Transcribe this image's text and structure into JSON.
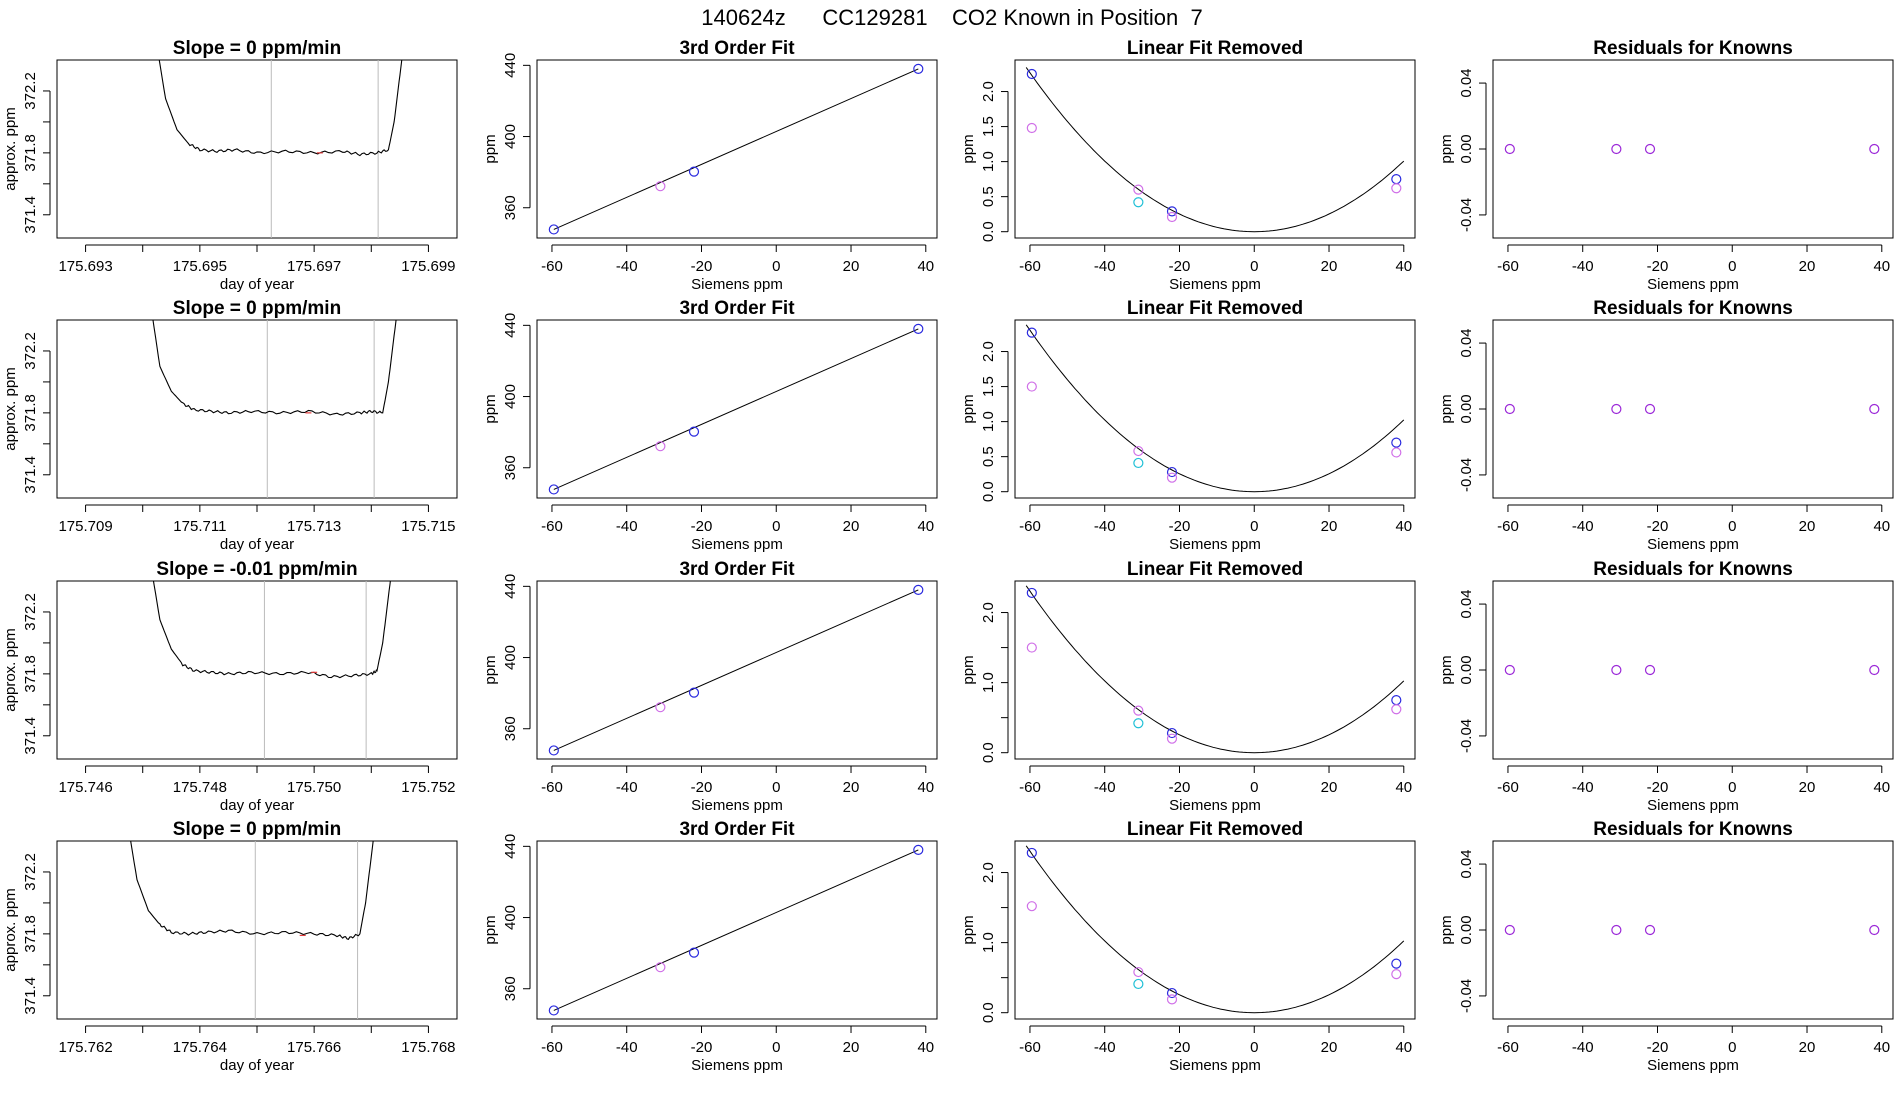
{
  "figure_title": "140624z      CC129281    CO2 Known in Position  7",
  "colors": {
    "axis": "#000000",
    "trace": "#000000",
    "marker_line": "#bbbbbb",
    "blue": "#2a2adf",
    "magenta": "#d070e8",
    "cyan": "#1fbfd6",
    "purple": "#9b28d8",
    "red": "#e23c3c"
  },
  "column_titles": {
    "fit": "3rd Order Fit",
    "linear_removed": "Linear Fit Removed",
    "residuals": "Residuals for Knowns"
  },
  "axis_labels": {
    "timeseries_x": "day of year",
    "timeseries_y": "approx. ppm",
    "siemens_x": "Siemens ppm",
    "ppm_y": "ppm"
  },
  "chart_data": [
    {
      "type": "line",
      "row": 1,
      "panel": "timeseries",
      "title": "Slope =  0  ppm/min",
      "xlabel": "day of year",
      "ylabel": "approx. ppm",
      "xlim": [
        175.6925,
        175.6995
      ],
      "ylim": [
        371.25,
        372.4
      ],
      "xticks": [
        "175.693",
        "175.695",
        "175.697",
        "175.699"
      ],
      "xticks_minor": [
        175.694,
        175.696,
        175.698
      ],
      "yticks": [
        "371.4",
        "371.8",
        "372.2"
      ],
      "yticks_minor": [
        371.6,
        372.0
      ],
      "window": [
        175.69625,
        175.69812
      ],
      "red_mark": [
        175.6971,
        371.8
      ],
      "x": [
        175.6942,
        175.6944,
        175.6946,
        175.6948,
        175.695,
        175.6953,
        175.6956,
        175.696,
        175.6965,
        175.697,
        175.6975,
        175.6978,
        175.6981,
        175.6983,
        175.6984,
        175.6985,
        175.6986
      ],
      "y": [
        372.6,
        372.15,
        371.95,
        371.86,
        371.82,
        371.81,
        371.82,
        371.8,
        371.81,
        371.8,
        371.81,
        371.79,
        371.8,
        371.82,
        372.0,
        372.3,
        372.6
      ]
    },
    {
      "type": "scatter",
      "row": 1,
      "panel": "fit",
      "title": "3rd Order Fit",
      "xlabel": "Siemens ppm",
      "ylabel": "ppm",
      "xlim": [
        -64,
        43
      ],
      "ylim": [
        343,
        443
      ],
      "xticks": [
        "-60",
        "-40",
        "-20",
        "0",
        "20",
        "40"
      ],
      "yticks": [
        "360",
        "400",
        "440"
      ],
      "points": [
        {
          "x": -59.5,
          "y": 347.8,
          "color": "blue"
        },
        {
          "x": -31.0,
          "y": 372.1,
          "color": "magenta"
        },
        {
          "x": -22.0,
          "y": 380.3,
          "color": "blue"
        },
        {
          "x": 38.0,
          "y": 438.0,
          "color": "blue"
        }
      ]
    },
    {
      "type": "scatter",
      "row": 1,
      "panel": "linear_removed",
      "title": "Linear Fit Removed",
      "xlabel": "Siemens ppm",
      "ylabel": "ppm",
      "xlim": [
        -64,
        43
      ],
      "ylim": [
        -0.09,
        2.45
      ],
      "xticks": [
        "-60",
        "-40",
        "-20",
        "0",
        "20",
        "40"
      ],
      "yticks": [
        "0.0",
        "0.5",
        "1.0",
        "1.5",
        "2.0"
      ],
      "curve_a": 0.00063,
      "points": [
        {
          "x": -59.5,
          "y": 2.25,
          "color": "blue"
        },
        {
          "x": -59.5,
          "y": 1.48,
          "color": "magenta"
        },
        {
          "x": -31.0,
          "y": 0.6,
          "color": "magenta"
        },
        {
          "x": -31.0,
          "y": 0.42,
          "color": "cyan"
        },
        {
          "x": -22.0,
          "y": 0.29,
          "color": "blue"
        },
        {
          "x": -22.0,
          "y": 0.21,
          "color": "magenta"
        },
        {
          "x": 38.0,
          "y": 0.75,
          "color": "blue"
        },
        {
          "x": 38.0,
          "y": 0.62,
          "color": "magenta"
        }
      ]
    },
    {
      "type": "scatter",
      "row": 1,
      "panel": "residuals",
      "title": "Residuals for Knowns",
      "xlabel": "Siemens ppm",
      "ylabel": "ppm",
      "xlim": [
        -64,
        43
      ],
      "ylim": [
        -0.054,
        0.054
      ],
      "xticks": [
        "-60",
        "-40",
        "-20",
        "0",
        "20",
        "40"
      ],
      "yticks": [
        "-0.04",
        "0.00",
        "0.04"
      ],
      "points": [
        {
          "x": -59.5,
          "y": 0.0,
          "color": "purple"
        },
        {
          "x": -31.0,
          "y": 0.0,
          "color": "purple"
        },
        {
          "x": -22.0,
          "y": 0.0,
          "color": "purple"
        },
        {
          "x": 38.0,
          "y": 0.0,
          "color": "purple"
        }
      ]
    },
    {
      "type": "line",
      "row": 2,
      "panel": "timeseries",
      "title": "Slope =  0  ppm/min",
      "xlabel": "day of year",
      "ylabel": "approx. ppm",
      "xlim": [
        175.7085,
        175.7155
      ],
      "ylim": [
        371.25,
        372.4
      ],
      "xticks": [
        "175.709",
        "175.711",
        "175.713",
        "175.715"
      ],
      "xticks_minor": [
        175.71,
        175.712,
        175.714
      ],
      "yticks": [
        "371.4",
        "371.8",
        "372.2"
      ],
      "yticks_minor": [
        371.6,
        372.0
      ],
      "window": [
        175.71218,
        175.71405
      ],
      "red_mark": [
        175.7129,
        371.8
      ],
      "x": [
        175.7101,
        175.7103,
        175.7105,
        175.7107,
        175.7109,
        175.7112,
        175.7115,
        175.7119,
        175.7124,
        175.7129,
        175.7134,
        175.7138,
        175.714,
        175.7142,
        175.7143,
        175.7144,
        175.7145
      ],
      "y": [
        372.6,
        372.1,
        371.94,
        371.86,
        371.82,
        371.81,
        371.8,
        371.81,
        371.8,
        371.81,
        371.79,
        371.8,
        371.81,
        371.8,
        372.0,
        372.3,
        372.6
      ]
    },
    {
      "type": "scatter",
      "row": 2,
      "panel": "fit",
      "title": "3rd Order Fit",
      "xlabel": "Siemens ppm",
      "ylabel": "ppm",
      "xlim": [
        -64,
        43
      ],
      "ylim": [
        343,
        443
      ],
      "xticks": [
        "-60",
        "-40",
        "-20",
        "0",
        "20",
        "40"
      ],
      "yticks": [
        "360",
        "400",
        "440"
      ],
      "points": [
        {
          "x": -59.5,
          "y": 347.8,
          "color": "blue"
        },
        {
          "x": -31.0,
          "y": 372.1,
          "color": "magenta"
        },
        {
          "x": -22.0,
          "y": 380.3,
          "color": "blue"
        },
        {
          "x": 38.0,
          "y": 438.0,
          "color": "blue"
        }
      ]
    },
    {
      "type": "scatter",
      "row": 2,
      "panel": "linear_removed",
      "title": "Linear Fit Removed",
      "xlabel": "Siemens ppm",
      "ylabel": "ppm",
      "xlim": [
        -64,
        43
      ],
      "ylim": [
        -0.09,
        2.45
      ],
      "xticks": [
        "-60",
        "-40",
        "-20",
        "0",
        "20",
        "40"
      ],
      "yticks": [
        "0.0",
        "0.5",
        "1.0",
        "1.5",
        "2.0"
      ],
      "curve_a": 0.00064,
      "points": [
        {
          "x": -59.5,
          "y": 2.27,
          "color": "blue"
        },
        {
          "x": -59.5,
          "y": 1.5,
          "color": "magenta"
        },
        {
          "x": -31.0,
          "y": 0.58,
          "color": "magenta"
        },
        {
          "x": -31.0,
          "y": 0.41,
          "color": "cyan"
        },
        {
          "x": -22.0,
          "y": 0.28,
          "color": "blue"
        },
        {
          "x": -22.0,
          "y": 0.2,
          "color": "magenta"
        },
        {
          "x": 38.0,
          "y": 0.7,
          "color": "blue"
        },
        {
          "x": 38.0,
          "y": 0.56,
          "color": "magenta"
        }
      ]
    },
    {
      "type": "scatter",
      "row": 2,
      "panel": "residuals",
      "title": "Residuals for Knowns",
      "xlabel": "Siemens ppm",
      "ylabel": "ppm",
      "xlim": [
        -64,
        43
      ],
      "ylim": [
        -0.054,
        0.054
      ],
      "xticks": [
        "-60",
        "-40",
        "-20",
        "0",
        "20",
        "40"
      ],
      "yticks": [
        "-0.04",
        "0.00",
        "0.04"
      ],
      "points": [
        {
          "x": -59.5,
          "y": 0.0,
          "color": "purple"
        },
        {
          "x": -31.0,
          "y": 0.0,
          "color": "purple"
        },
        {
          "x": -22.0,
          "y": 0.0,
          "color": "purple"
        },
        {
          "x": 38.0,
          "y": 0.0,
          "color": "purple"
        }
      ]
    },
    {
      "type": "line",
      "row": 3,
      "panel": "timeseries",
      "title": "Slope =  -0.01  ppm/min",
      "xlabel": "day of year",
      "ylabel": "approx. ppm",
      "xlim": [
        175.7455,
        175.7525
      ],
      "ylim": [
        371.25,
        372.4
      ],
      "xticks": [
        "175.746",
        "175.748",
        "175.750",
        "175.752"
      ],
      "xticks_minor": [
        175.747,
        175.749,
        175.751
      ],
      "yticks": [
        "371.4",
        "371.8",
        "372.2"
      ],
      "yticks_minor": [
        371.6,
        372.0
      ],
      "window": [
        175.74913,
        175.75091
      ],
      "red_mark": [
        175.75,
        371.81
      ],
      "x": [
        175.7471,
        175.7473,
        175.7475,
        175.7477,
        175.7479,
        175.7482,
        175.7485,
        175.7489,
        175.7494,
        175.7499,
        175.7503,
        175.7507,
        175.751,
        175.7511,
        175.7512,
        175.7513,
        175.7514
      ],
      "y": [
        372.6,
        372.15,
        371.96,
        371.86,
        371.82,
        371.81,
        371.8,
        371.81,
        371.8,
        371.81,
        371.78,
        371.79,
        371.8,
        371.82,
        372.0,
        372.3,
        372.6
      ]
    },
    {
      "type": "scatter",
      "row": 3,
      "panel": "fit",
      "title": "3rd Order Fit",
      "xlabel": "Siemens ppm",
      "ylabel": "ppm",
      "xlim": [
        -64,
        43
      ],
      "ylim": [
        343,
        443
      ],
      "xticks": [
        "-60",
        "-40",
        "-20",
        "0",
        "20",
        "40"
      ],
      "yticks": [
        "360",
        "400",
        "440"
      ],
      "points": [
        {
          "x": -59.5,
          "y": 347.8,
          "color": "blue"
        },
        {
          "x": -31.0,
          "y": 372.1,
          "color": "magenta"
        },
        {
          "x": -22.0,
          "y": 380.3,
          "color": "blue"
        },
        {
          "x": 38.0,
          "y": 438.0,
          "color": "blue"
        }
      ]
    },
    {
      "type": "scatter",
      "row": 3,
      "panel": "linear_removed",
      "title": "Linear Fit Removed",
      "xlabel": "Siemens ppm",
      "ylabel": "ppm",
      "xlim": [
        -64,
        43
      ],
      "ylim": [
        -0.09,
        2.45
      ],
      "xticks": [
        "-60",
        "-40",
        "-20",
        "0",
        "20",
        "40"
      ],
      "yticks": [
        "0.0",
        "1.0",
        "2.0"
      ],
      "yticks_minor": [
        0.5,
        1.5
      ],
      "curve_a": 0.00064,
      "points": [
        {
          "x": -59.5,
          "y": 2.28,
          "color": "blue"
        },
        {
          "x": -59.5,
          "y": 1.5,
          "color": "magenta"
        },
        {
          "x": -31.0,
          "y": 0.6,
          "color": "magenta"
        },
        {
          "x": -31.0,
          "y": 0.42,
          "color": "cyan"
        },
        {
          "x": -22.0,
          "y": 0.28,
          "color": "blue"
        },
        {
          "x": -22.0,
          "y": 0.2,
          "color": "magenta"
        },
        {
          "x": 38.0,
          "y": 0.75,
          "color": "blue"
        },
        {
          "x": 38.0,
          "y": 0.62,
          "color": "magenta"
        }
      ]
    },
    {
      "type": "scatter",
      "row": 3,
      "panel": "residuals",
      "title": "Residuals for Knowns",
      "xlabel": "Siemens ppm",
      "ylabel": "ppm",
      "xlim": [
        -64,
        43
      ],
      "ylim": [
        -0.054,
        0.054
      ],
      "xticks": [
        "-60",
        "-40",
        "-20",
        "0",
        "20",
        "40"
      ],
      "yticks": [
        "-0.04",
        "0.00",
        "0.04"
      ],
      "points": [
        {
          "x": -59.5,
          "y": 0.0,
          "color": "purple"
        },
        {
          "x": -31.0,
          "y": 0.0,
          "color": "purple"
        },
        {
          "x": -22.0,
          "y": 0.0,
          "color": "purple"
        },
        {
          "x": 38.0,
          "y": 0.0,
          "color": "purple"
        }
      ]
    },
    {
      "type": "line",
      "row": 4,
      "panel": "timeseries",
      "title": "Slope =  0  ppm/min",
      "xlabel": "day of year",
      "ylabel": "approx. ppm",
      "xlim": [
        175.7615,
        175.7685
      ],
      "ylim": [
        371.25,
        372.4
      ],
      "xticks": [
        "175.762",
        "175.764",
        "175.766",
        "175.768"
      ],
      "xticks_minor": [
        175.763,
        175.765,
        175.767
      ],
      "yticks": [
        "371.4",
        "371.8",
        "372.2"
      ],
      "yticks_minor": [
        371.6,
        372.0
      ],
      "window": [
        175.76497,
        175.76676
      ],
      "red_mark": [
        175.7658,
        371.79
      ],
      "x": [
        175.7627,
        175.7629,
        175.7631,
        175.7633,
        175.7635,
        175.7638,
        175.7641,
        175.7645,
        175.765,
        175.7655,
        175.766,
        175.7664,
        175.7666,
        175.7668,
        175.7669,
        175.767,
        175.7671
      ],
      "y": [
        372.6,
        372.15,
        371.95,
        371.86,
        371.81,
        371.8,
        371.81,
        371.82,
        371.8,
        371.81,
        371.8,
        371.79,
        371.77,
        371.8,
        372.0,
        372.3,
        372.6
      ]
    },
    {
      "type": "scatter",
      "row": 4,
      "panel": "fit",
      "title": "3rd Order Fit",
      "xlabel": "Siemens ppm",
      "ylabel": "ppm",
      "xlim": [
        -64,
        43
      ],
      "ylim": [
        343,
        443
      ],
      "xticks": [
        "-60",
        "-40",
        "-20",
        "0",
        "20",
        "40"
      ],
      "yticks": [
        "360",
        "400",
        "440"
      ],
      "points": [
        {
          "x": -59.5,
          "y": 347.8,
          "color": "blue"
        },
        {
          "x": -31.0,
          "y": 372.1,
          "color": "magenta"
        },
        {
          "x": -22.0,
          "y": 380.3,
          "color": "blue"
        },
        {
          "x": 38.0,
          "y": 438.0,
          "color": "blue"
        }
      ]
    },
    {
      "type": "scatter",
      "row": 4,
      "panel": "linear_removed",
      "title": "Linear Fit Removed",
      "xlabel": "Siemens ppm",
      "ylabel": "ppm",
      "xlim": [
        -64,
        43
      ],
      "ylim": [
        -0.09,
        2.45
      ],
      "xticks": [
        "-60",
        "-40",
        "-20",
        "0",
        "20",
        "40"
      ],
      "yticks": [
        "0.0",
        "1.0",
        "2.0"
      ],
      "yticks_minor": [
        0.5,
        1.5
      ],
      "curve_a": 0.00064,
      "points": [
        {
          "x": -59.5,
          "y": 2.28,
          "color": "blue"
        },
        {
          "x": -59.5,
          "y": 1.52,
          "color": "magenta"
        },
        {
          "x": -31.0,
          "y": 0.58,
          "color": "magenta"
        },
        {
          "x": -31.0,
          "y": 0.41,
          "color": "cyan"
        },
        {
          "x": -22.0,
          "y": 0.28,
          "color": "blue"
        },
        {
          "x": -22.0,
          "y": 0.19,
          "color": "magenta"
        },
        {
          "x": 38.0,
          "y": 0.7,
          "color": "blue"
        },
        {
          "x": 38.0,
          "y": 0.55,
          "color": "magenta"
        }
      ]
    },
    {
      "type": "scatter",
      "row": 4,
      "panel": "residuals",
      "title": "Residuals for Knowns",
      "xlabel": "Siemens ppm",
      "ylabel": "ppm",
      "xlim": [
        -64,
        43
      ],
      "ylim": [
        -0.054,
        0.054
      ],
      "xticks": [
        "-60",
        "-40",
        "-20",
        "0",
        "20",
        "40"
      ],
      "yticks": [
        "-0.04",
        "0.00",
        "0.04"
      ],
      "points": [
        {
          "x": -59.5,
          "y": 0.0,
          "color": "purple"
        },
        {
          "x": -31.0,
          "y": 0.0,
          "color": "purple"
        },
        {
          "x": -22.0,
          "y": 0.0,
          "color": "purple"
        },
        {
          "x": 38.0,
          "y": 0.0,
          "color": "purple"
        }
      ]
    }
  ]
}
